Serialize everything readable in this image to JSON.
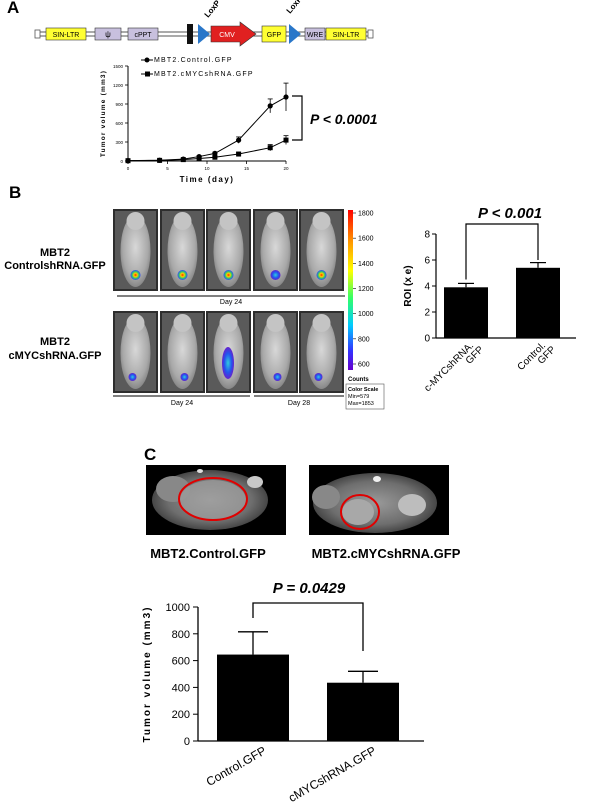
{
  "panel_a": {
    "letter": "A",
    "construct": {
      "elements": [
        "SIN-LTR",
        "ψ",
        "cPPT",
        "CMV",
        "GFP",
        "WRE",
        "SIN-LTR"
      ],
      "loxp_labels": [
        "LoxP",
        "LoxP"
      ],
      "colors": {
        "ltr": "#ffff33",
        "grey": "#c8c0de",
        "cmv": "#e02020",
        "gfp": "#ffff33",
        "lox": "#2a77c9"
      }
    },
    "legend_control": "MBT2.Control.GFP",
    "legend_shrna": "MBT2.cMYCshRNA.GFP",
    "pvalue": "P < 0.0001"
  },
  "panel_b": {
    "letter": "B",
    "row1_label_line1": "MBT2",
    "row1_label_line2": "ControlshRNA.GFP",
    "row2_label_line1": "MBT2",
    "row2_label_line2": "cMYCshRNA.GFP",
    "day_row1": "Day 24",
    "day_row2a": "Day 24",
    "day_row2b": "Day 28",
    "colorbar": {
      "ticks": [
        "1800",
        "1600",
        "1400",
        "1200",
        "1000",
        "800",
        "600"
      ],
      "counts_label": "Counts",
      "scale_line1": "Color Scale",
      "scale_line2": "Min=579",
      "scale_line3": "Max=1853"
    },
    "pvalue": "P < 0.001"
  },
  "panel_c": {
    "letter": "C",
    "mri_label_left": "MBT2.Control.GFP",
    "mri_label_right": "MBT2.cMYCshRNA.GFP",
    "pvalue": "P = 0.0429"
  },
  "chart_data": [
    {
      "id": "A-growth",
      "type": "line",
      "title": "",
      "xlabel": "Time (day)",
      "ylabel": "Tumor volume (mm3)",
      "xlim": [
        0,
        20
      ],
      "ylim": [
        0,
        1500
      ],
      "xticks": [
        0,
        5,
        10,
        15,
        20
      ],
      "yticks": [
        0,
        300,
        600,
        900,
        1200,
        1500
      ],
      "series": [
        {
          "name": "MBT2.Control.GFP",
          "marker": "circle",
          "x": [
            0,
            4,
            7,
            9,
            11,
            14,
            18,
            20
          ],
          "y": [
            5,
            12,
            30,
            70,
            120,
            330,
            870,
            1010
          ],
          "err": [
            5,
            5,
            10,
            15,
            20,
            50,
            110,
            220
          ]
        },
        {
          "name": "MBT2.cMYCshRNA.GFP",
          "marker": "square",
          "x": [
            0,
            4,
            7,
            9,
            11,
            14,
            18,
            20
          ],
          "y": [
            5,
            10,
            22,
            40,
            60,
            110,
            210,
            330
          ],
          "err": [
            5,
            5,
            8,
            10,
            15,
            20,
            50,
            70
          ]
        }
      ]
    },
    {
      "id": "B-roi",
      "type": "bar",
      "title": "",
      "xlabel": "",
      "ylabel": "ROI (x e5)",
      "categories": [
        "c-MYCshRNA.\nGFP",
        "Control.\nGFP"
      ],
      "values": [
        3.9,
        5.4
      ],
      "errors": [
        0.3,
        0.4
      ],
      "ylim": [
        0,
        8
      ],
      "yticks": [
        0,
        2,
        4,
        6,
        8
      ]
    },
    {
      "id": "C-volume",
      "type": "bar",
      "title": "",
      "xlabel": "",
      "ylabel": "Tumor volume (mm3)",
      "categories": [
        "Control.GFP",
        "cMYCshRNA.GFP"
      ],
      "values": [
        645,
        435
      ],
      "errors": [
        170,
        85
      ],
      "ylim": [
        0,
        1000
      ],
      "yticks": [
        0,
        200,
        400,
        600,
        800,
        1000
      ]
    }
  ]
}
